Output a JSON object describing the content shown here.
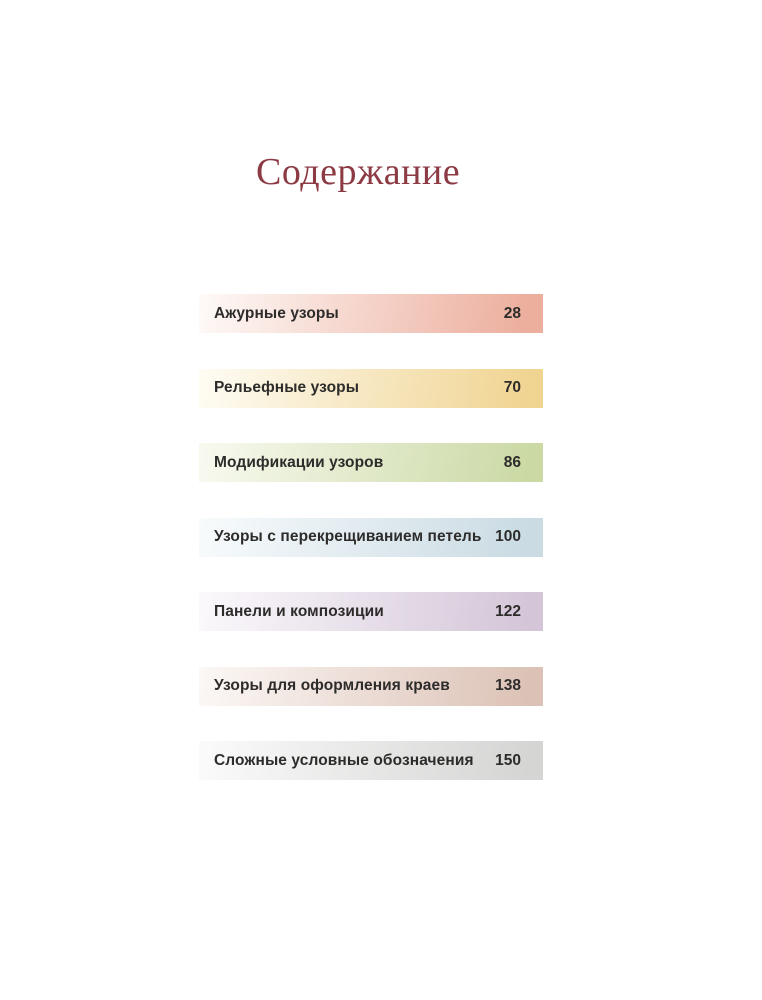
{
  "page": {
    "title": "Содержание",
    "title_color": "#8c3a44",
    "text_color": "#2d2c2b",
    "background_color": "#ffffff"
  },
  "toc": {
    "items": [
      {
        "label": "Ажурные узоры",
        "page": "28",
        "gradient_start": "#fefaf8",
        "gradient_end": "#ecae9d"
      },
      {
        "label": "Рельефные узоры",
        "page": "70",
        "gradient_start": "#fefcf4",
        "gradient_end": "#f0d492"
      },
      {
        "label": "Модификации узоров",
        "page": "86",
        "gradient_start": "#f8faf0",
        "gradient_end": "#cbd9a5"
      },
      {
        "label": "Узоры с перекрещиванием петель",
        "page": "100",
        "gradient_start": "#f8fbfc",
        "gradient_end": "#cadbe3"
      },
      {
        "label": "Панели и композиции",
        "page": "122",
        "gradient_start": "#fbf9fc",
        "gradient_end": "#d4c6d8"
      },
      {
        "label": "Узоры для оформления краев",
        "page": "138",
        "gradient_start": "#fcf8f6",
        "gradient_end": "#dcc2b6"
      },
      {
        "label": "Сложные условные обозначения",
        "page": "150",
        "gradient_start": "#fbfbfb",
        "gradient_end": "#d5d5d4"
      }
    ]
  }
}
